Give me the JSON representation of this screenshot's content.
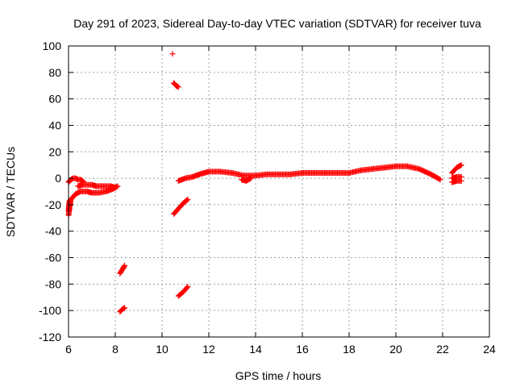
{
  "chart_data": {
    "type": "scatter",
    "title": "Day 291 of 2023, Sidereal Day-to-day VTEC variation (SDTVAR) for receiver tuva",
    "xlabel": "GPS time / hours",
    "ylabel": "SDTVAR / TECUs",
    "xlim": [
      6,
      24
    ],
    "ylim": [
      -120,
      100
    ],
    "xticks": [
      6,
      8,
      10,
      12,
      14,
      16,
      18,
      20,
      22,
      24
    ],
    "yticks": [
      -120,
      -100,
      -80,
      -60,
      -40,
      -20,
      0,
      20,
      40,
      60,
      80,
      100
    ],
    "grid": true,
    "marker": "+",
    "colors": {
      "series": "#ff0000",
      "grid": "#a0a0a0",
      "axes": "#000000"
    },
    "segments": [
      {
        "name": "trace-near-zero-6h",
        "x": [
          6.0,
          6.05,
          6.1,
          6.2,
          6.3,
          6.4,
          6.5,
          6.6,
          6.65
        ],
        "y": [
          -3,
          -2,
          -1,
          0,
          0,
          -1,
          -1,
          -2,
          -3
        ]
      },
      {
        "name": "trace-dip-6h",
        "x": [
          6.0,
          6.1,
          6.3,
          6.5,
          6.8,
          7.0,
          7.3,
          7.6,
          7.9,
          8.1
        ],
        "y": [
          -28,
          -16,
          -12,
          -10,
          -10,
          -11,
          -11,
          -10,
          -8,
          -6
        ]
      },
      {
        "name": "trace-low-6h",
        "x": [
          6.0,
          6.02,
          6.05,
          6.1
        ],
        "y": [
          -25,
          -20,
          -17,
          -16
        ]
      },
      {
        "name": "trace-mid-6h",
        "x": [
          6.4,
          6.6,
          6.8,
          7.0,
          7.2,
          7.5,
          7.8,
          8.0
        ],
        "y": [
          -6,
          -5,
          -5,
          -5,
          -6,
          -6,
          -6,
          -7
        ]
      },
      {
        "name": "trace-8h-upper",
        "x": [
          8.2,
          8.3,
          8.4
        ],
        "y": [
          -72,
          -69,
          -66
        ]
      },
      {
        "name": "trace-8h-lower",
        "x": [
          8.2,
          8.3,
          8.4
        ],
        "y": [
          -101,
          -99,
          -98
        ]
      },
      {
        "name": "outlier-10h",
        "x": [
          10.45
        ],
        "y": [
          94
        ]
      },
      {
        "name": "trace-10h-high",
        "x": [
          10.5,
          10.6,
          10.7
        ],
        "y": [
          72,
          70,
          69
        ]
      },
      {
        "name": "trace-10h-mid",
        "x": [
          10.5,
          10.7,
          10.9,
          11.1
        ],
        "y": [
          -27,
          -23,
          -19,
          -16
        ]
      },
      {
        "name": "trace-10h-low",
        "x": [
          10.7,
          10.9,
          11.1
        ],
        "y": [
          -89,
          -86,
          -82
        ]
      },
      {
        "name": "trace-main",
        "x": [
          10.7,
          11.0,
          11.3,
          11.6,
          12.0,
          12.5,
          13.0,
          13.5,
          14.0,
          14.5,
          15.0,
          15.5,
          16.0,
          16.5,
          17.0,
          17.5,
          18.0,
          18.5,
          19.0,
          19.5,
          20.0,
          20.5,
          21.0,
          21.5,
          21.9
        ],
        "y": [
          -2,
          0,
          1,
          3,
          5,
          5,
          4,
          2,
          2,
          3,
          3,
          3,
          4,
          4,
          4,
          4,
          4,
          6,
          7,
          8,
          9,
          9,
          7,
          3,
          -1
        ]
      },
      {
        "name": "trace-main-lower",
        "x": [
          13.4,
          13.6,
          13.8
        ],
        "y": [
          -1,
          -2,
          0
        ]
      },
      {
        "name": "trace-22h-upper",
        "x": [
          22.4,
          22.5,
          22.6,
          22.7,
          22.8
        ],
        "y": [
          4,
          6,
          8,
          9,
          10
        ]
      },
      {
        "name": "trace-22h-lower",
        "x": [
          22.4,
          22.6,
          22.8
        ],
        "y": [
          -3,
          -2,
          -2
        ]
      },
      {
        "name": "trace-22h-mid",
        "x": [
          22.4,
          22.6,
          22.8
        ],
        "y": [
          0,
          1,
          1
        ]
      }
    ]
  }
}
